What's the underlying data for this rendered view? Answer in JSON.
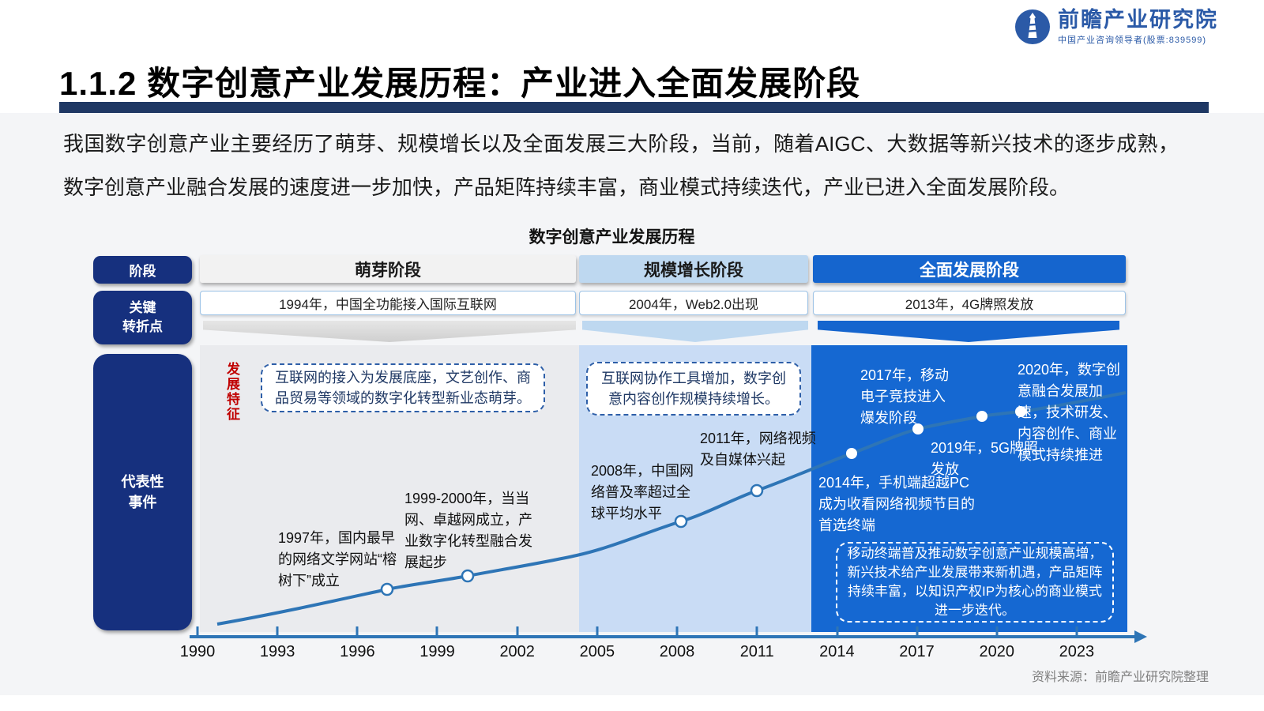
{
  "logo": {
    "name": "前瞻产业研究院",
    "tagline": "中国产业咨询领导者(股票:839599)"
  },
  "header": {
    "title": "1.1.2 数字创意产业发展历程：产业进入全面发展阶段"
  },
  "intro": "我国数字创意产业主要经历了萌芽、规模增长以及全面发展三大阶段，当前，随着AIGC、大数据等新兴技术的逐步成熟，数字创意产业融合发展的速度进一步加快，产品矩阵持续丰富，商业模式持续迭代，产业已进入全面发展阶段。",
  "diagram": {
    "title": "数字创意产业发展历程",
    "row_labels": {
      "stage": "阶段",
      "turning": "关键\n转折点",
      "feature": "发\n展\n特\n征",
      "events": "代表性\n事件"
    },
    "stages": [
      {
        "name": "萌芽阶段",
        "turning_point": "1994年，中国全功能接入国际互联网",
        "feature": "互联网的接入为发展底座，文艺创作、商品贸易等领域的数字化转型新业态萌芽。"
      },
      {
        "name": "规模增长阶段",
        "turning_point": "2004年，Web2.0出现",
        "feature": "互联网协作工具增加，数字创意内容创作规模持续增长。"
      },
      {
        "name": "全面发展阶段",
        "turning_point": "2013年，4G牌照发放",
        "summary": "移动终端普及推动数字创意产业规模高增，新兴技术给产业发展带来新机遇，产品矩阵持续丰富，以知识产权IP为核心的商业模式进一步迭代。"
      }
    ],
    "events": [
      {
        "label": "1997年，国内最早的网络文学网站“榕树下”成立"
      },
      {
        "label": "1999-2000年，当当网、卓越网成立，产业数字化转型融合发展起步"
      },
      {
        "label": "2008年，中国网络普及率超过全球平均水平"
      },
      {
        "label": "2011年，网络视频及自媒体兴起"
      },
      {
        "label": "2014年，手机端超越PC 成为收看网络视频节目的首选终端"
      },
      {
        "label": "2017年，移动电子竞技进入爆发阶段"
      },
      {
        "label": "2019年，5G牌照发放"
      },
      {
        "label": "2020年，数字创意融合发展加速，技术研发、内容创作、商业模式持续推进"
      }
    ],
    "axis_years": [
      "1990",
      "1993",
      "1996",
      "1999",
      "2002",
      "2005",
      "2008",
      "2011",
      "2014",
      "2017",
      "2020",
      "2023"
    ],
    "colors": {
      "navy": "#1F3864",
      "sidebar_navy": "#16307E",
      "bright_blue": "#1565CE",
      "light_blue_header": "#BED8F0",
      "light_blue_panel": "#C9DCF5",
      "gray_panel": "#EAEBEE",
      "curve_blue": "#2E75B6",
      "accent_red": "#C00000"
    }
  },
  "footer": {
    "source": "资料来源：前瞻产业研究院整理"
  }
}
